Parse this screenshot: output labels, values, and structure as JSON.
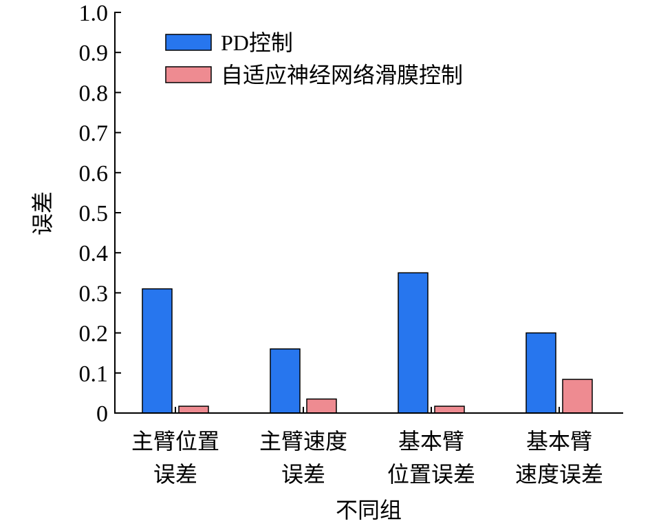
{
  "chart_data": {
    "type": "bar",
    "categories": [
      [
        "主臂位置",
        "误差"
      ],
      [
        "主臂速度",
        "误差"
      ],
      [
        "基本臂",
        "位置误差"
      ],
      [
        "基本臂",
        "速度误差"
      ]
    ],
    "series": [
      {
        "name": "PD控制",
        "color": "#2776ee",
        "values": [
          0.31,
          0.16,
          0.35,
          0.2
        ]
      },
      {
        "name": "自适应神经网络滑膜控制",
        "color": "#ee8b91",
        "values": [
          0.017,
          0.035,
          0.017,
          0.084
        ]
      }
    ],
    "xlabel": "不同组",
    "ylabel": "误差",
    "ylim": [
      0,
      1.0
    ],
    "yticks": [
      "0",
      "0.1",
      "0.2",
      "0.3",
      "0.4",
      "0.5",
      "0.6",
      "0.7",
      "0.8",
      "0.9",
      "1.0"
    ],
    "grid": false,
    "legend_position": "top-left"
  }
}
